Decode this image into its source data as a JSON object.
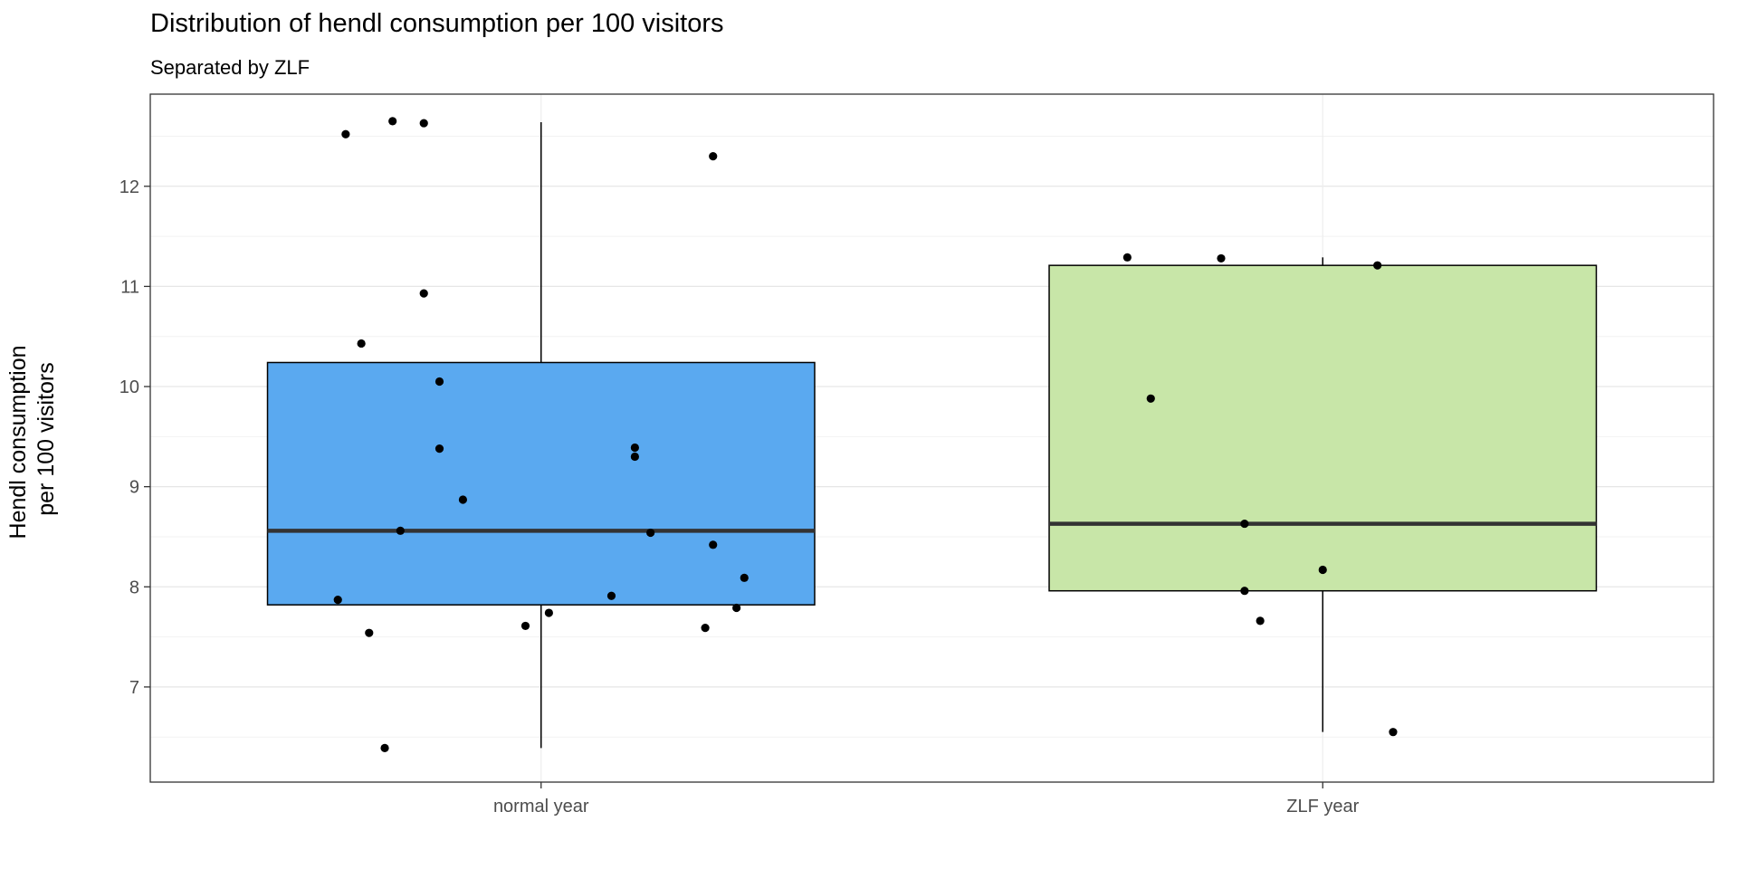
{
  "chart_data": {
    "type": "boxplot",
    "title": "Distribution of hendl consumption per 100 visitors",
    "subtitle": "Separated by ZLF",
    "xlabel": "",
    "ylabel": [
      "Hendl consumption",
      "per 100 visitors"
    ],
    "ylim": [
      6.05,
      12.92
    ],
    "yticks": [
      7,
      8,
      9,
      10,
      11,
      12
    ],
    "grid": true,
    "categories": [
      "normal year",
      "ZLF year"
    ],
    "boxes": [
      {
        "name": "normal year",
        "color": "#5aa9f0",
        "q1": 7.82,
        "median": 8.56,
        "q3": 10.24,
        "whisker_low": 6.39,
        "whisker_high": 12.64,
        "points": [
          {
            "jitter": -0.25,
            "value": 12.52
          },
          {
            "jitter": -0.19,
            "value": 12.65
          },
          {
            "jitter": -0.15,
            "value": 12.63
          },
          {
            "jitter": 0.22,
            "value": 12.3
          },
          {
            "jitter": -0.15,
            "value": 10.93
          },
          {
            "jitter": -0.23,
            "value": 10.43
          },
          {
            "jitter": -0.13,
            "value": 10.05
          },
          {
            "jitter": -0.13,
            "value": 9.38
          },
          {
            "jitter": 0.12,
            "value": 9.39
          },
          {
            "jitter": 0.12,
            "value": 9.3
          },
          {
            "jitter": -0.1,
            "value": 8.87
          },
          {
            "jitter": -0.18,
            "value": 8.56
          },
          {
            "jitter": 0.14,
            "value": 8.54
          },
          {
            "jitter": 0.22,
            "value": 8.42
          },
          {
            "jitter": 0.26,
            "value": 8.09
          },
          {
            "jitter": 0.09,
            "value": 7.91
          },
          {
            "jitter": -0.26,
            "value": 7.87
          },
          {
            "jitter": 0.25,
            "value": 7.79
          },
          {
            "jitter": 0.01,
            "value": 7.74
          },
          {
            "jitter": -0.02,
            "value": 7.61
          },
          {
            "jitter": 0.21,
            "value": 7.59
          },
          {
            "jitter": -0.22,
            "value": 7.54
          },
          {
            "jitter": -0.2,
            "value": 6.39
          }
        ]
      },
      {
        "name": "ZLF year",
        "color": "#c8e6a8",
        "q1": 7.96,
        "median": 8.63,
        "q3": 11.21,
        "whisker_low": 6.55,
        "whisker_high": 11.29,
        "points": [
          {
            "jitter": -0.25,
            "value": 11.29
          },
          {
            "jitter": -0.13,
            "value": 11.28
          },
          {
            "jitter": 0.07,
            "value": 11.21
          },
          {
            "jitter": -0.22,
            "value": 9.88
          },
          {
            "jitter": -0.1,
            "value": 8.63
          },
          {
            "jitter": 0.0,
            "value": 8.17
          },
          {
            "jitter": -0.1,
            "value": 7.96
          },
          {
            "jitter": -0.08,
            "value": 7.66
          },
          {
            "jitter": 0.09,
            "value": 6.55
          }
        ]
      }
    ]
  }
}
